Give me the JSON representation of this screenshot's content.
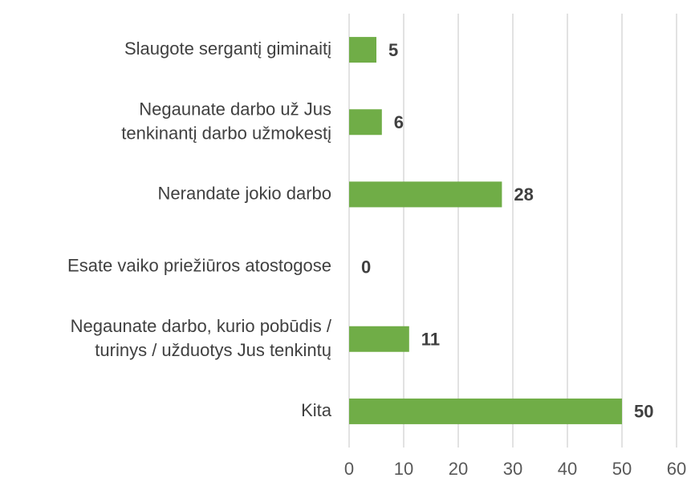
{
  "chart_data": {
    "type": "barh",
    "categories": [
      [
        "Slaugote sergantį giminaitį"
      ],
      [
        "Negaunate darbo už Jus",
        "tenkinantį darbo užmokestį"
      ],
      [
        "Nerandate jokio darbo"
      ],
      [
        "Esate vaiko priežiūros atostogose"
      ],
      [
        "Negaunate  darbo, kurio pobūdis /",
        "turinys / užduotys Jus tenkintų"
      ],
      [
        "Kita"
      ]
    ],
    "values": [
      5,
      6,
      28,
      0,
      11,
      50
    ],
    "color": "#70ad47",
    "xlim": [
      0,
      60
    ],
    "xticks": [
      0,
      10,
      20,
      30,
      40,
      50,
      60
    ],
    "grid": true
  }
}
